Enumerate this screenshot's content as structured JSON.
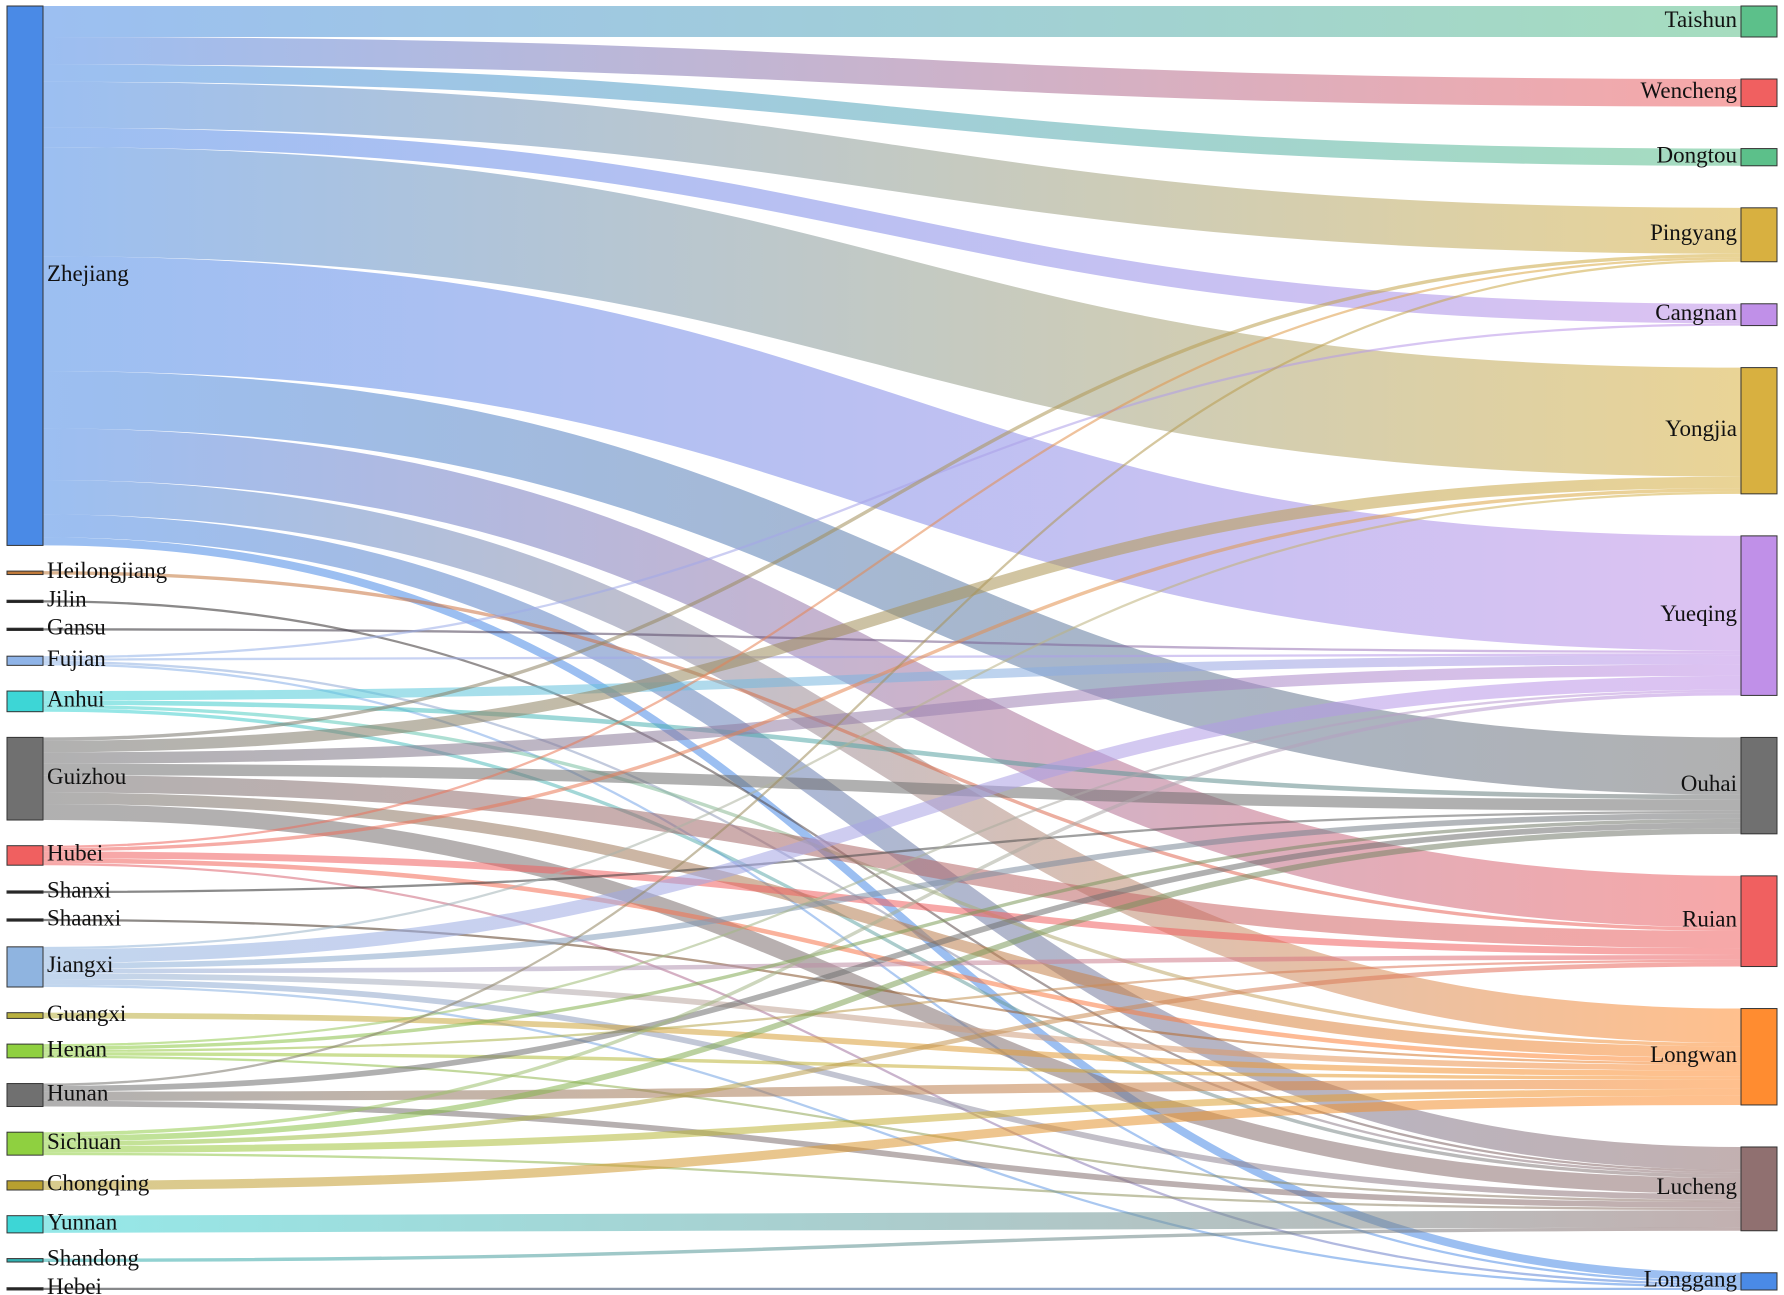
{
  "chart_data": {
    "type": "sankey",
    "nodes": [
      {
        "name": "Zhejiang",
        "color": "#4a8ae6"
      },
      {
        "name": "Heilongjiang",
        "color": "#c07a3a"
      },
      {
        "name": "Jilin",
        "color": "#222222"
      },
      {
        "name": "Gansu",
        "color": "#222222"
      },
      {
        "name": "Fujian",
        "color": "#8fb4e8"
      },
      {
        "name": "Anhui",
        "color": "#3dd6d6"
      },
      {
        "name": "Guizhou",
        "color": "#707070"
      },
      {
        "name": "Hubei",
        "color": "#f06060"
      },
      {
        "name": "Shanxi",
        "color": "#222222"
      },
      {
        "name": "Shaanxi",
        "color": "#222222"
      },
      {
        "name": "Jiangxi",
        "color": "#8fb4e0"
      },
      {
        "name": "Guangxi",
        "color": "#b8b040"
      },
      {
        "name": "Henan",
        "color": "#8fd040"
      },
      {
        "name": "Hunan",
        "color": "#707070"
      },
      {
        "name": "Sichuan",
        "color": "#8fd040"
      },
      {
        "name": "Chongqing",
        "color": "#b8a030"
      },
      {
        "name": "Yunnan",
        "color": "#3dd6d6"
      },
      {
        "name": "Shandong",
        "color": "#30b0b0"
      },
      {
        "name": "Hebei",
        "color": "#222222"
      },
      {
        "name": "Taishun",
        "color": "#5cc08a"
      },
      {
        "name": "Wencheng",
        "color": "#f06060"
      },
      {
        "name": "Dongtou",
        "color": "#5cc08a"
      },
      {
        "name": "Pingyang",
        "color": "#d8b040"
      },
      {
        "name": "Cangnan",
        "color": "#c090e8"
      },
      {
        "name": "Yongjia",
        "color": "#d8b040"
      },
      {
        "name": "Yueqing",
        "color": "#c090e8"
      },
      {
        "name": "Ouhai",
        "color": "#707070"
      },
      {
        "name": "Ruian",
        "color": "#f06060"
      },
      {
        "name": "Longwan",
        "color": "#ff8c30"
      },
      {
        "name": "Lucheng",
        "color": "#907070"
      },
      {
        "name": "Longgang",
        "color": "#4a8ae6"
      }
    ],
    "links": [
      {
        "source": "Zhejiang",
        "target": "Taishun",
        "value": 27
      },
      {
        "source": "Zhejiang",
        "target": "Wencheng",
        "value": 24
      },
      {
        "source": "Zhejiang",
        "target": "Dongtou",
        "value": 15
      },
      {
        "source": "Zhejiang",
        "target": "Pingyang",
        "value": 40
      },
      {
        "source": "Zhejiang",
        "target": "Cangnan",
        "value": 17
      },
      {
        "source": "Zhejiang",
        "target": "Yongjia",
        "value": 95
      },
      {
        "source": "Zhejiang",
        "target": "Yueqing",
        "value": 100
      },
      {
        "source": "Zhejiang",
        "target": "Ouhai",
        "value": 50
      },
      {
        "source": "Zhejiang",
        "target": "Ruian",
        "value": 45
      },
      {
        "source": "Zhejiang",
        "target": "Longwan",
        "value": 30
      },
      {
        "source": "Zhejiang",
        "target": "Lucheng",
        "value": 20
      },
      {
        "source": "Zhejiang",
        "target": "Longgang",
        "value": 7
      },
      {
        "source": "Heilongjiang",
        "target": "Ruian",
        "value": 3
      },
      {
        "source": "Jilin",
        "target": "Lucheng",
        "value": 2
      },
      {
        "source": "Gansu",
        "target": "Yueqing",
        "value": 2
      },
      {
        "source": "Fujian",
        "target": "Cangnan",
        "value": 2
      },
      {
        "source": "Fujian",
        "target": "Yueqing",
        "value": 2
      },
      {
        "source": "Fujian",
        "target": "Lucheng",
        "value": 2
      },
      {
        "source": "Fujian",
        "target": "Longgang",
        "value": 2
      },
      {
        "source": "Anhui",
        "target": "Yueqing",
        "value": 8
      },
      {
        "source": "Anhui",
        "target": "Ouhai",
        "value": 4
      },
      {
        "source": "Anhui",
        "target": "Longwan",
        "value": 3
      },
      {
        "source": "Anhui",
        "target": "Lucheng",
        "value": 3
      },
      {
        "source": "Guizhou",
        "target": "Pingyang",
        "value": 3
      },
      {
        "source": "Guizhou",
        "target": "Yongjia",
        "value": 10
      },
      {
        "source": "Guizhou",
        "target": "Yueqing",
        "value": 10
      },
      {
        "source": "Guizhou",
        "target": "Ouhai",
        "value": 10
      },
      {
        "source": "Guizhou",
        "target": "Ruian",
        "value": 15
      },
      {
        "source": "Guizhou",
        "target": "Longwan",
        "value": 10
      },
      {
        "source": "Guizhou",
        "target": "Lucheng",
        "value": 14
      },
      {
        "source": "Hubei",
        "target": "Pingyang",
        "value": 2
      },
      {
        "source": "Hubei",
        "target": "Yongjia",
        "value": 3
      },
      {
        "source": "Hubei",
        "target": "Ruian",
        "value": 6
      },
      {
        "source": "Hubei",
        "target": "Longwan",
        "value": 4
      },
      {
        "source": "Hubei",
        "target": "Longgang",
        "value": 2
      },
      {
        "source": "Shanxi",
        "target": "Ouhai",
        "value": 2
      },
      {
        "source": "Shaanxi",
        "target": "Longwan",
        "value": 2
      },
      {
        "source": "Jiangxi",
        "target": "Yongjia",
        "value": 2
      },
      {
        "source": "Jiangxi",
        "target": "Yueqing",
        "value": 12
      },
      {
        "source": "Jiangxi",
        "target": "Ouhai",
        "value": 5
      },
      {
        "source": "Jiangxi",
        "target": "Ruian",
        "value": 4
      },
      {
        "source": "Jiangxi",
        "target": "Longwan",
        "value": 5
      },
      {
        "source": "Jiangxi",
        "target": "Lucheng",
        "value": 5
      },
      {
        "source": "Jiangxi",
        "target": "Longgang",
        "value": 2
      },
      {
        "source": "Guangxi",
        "target": "Longwan",
        "value": 5
      },
      {
        "source": "Henan",
        "target": "Yueqing",
        "value": 2
      },
      {
        "source": "Henan",
        "target": "Ouhai",
        "value": 3
      },
      {
        "source": "Henan",
        "target": "Ruian",
        "value": 2
      },
      {
        "source": "Henan",
        "target": "Longwan",
        "value": 3
      },
      {
        "source": "Henan",
        "target": "Lucheng",
        "value": 2
      },
      {
        "source": "Hunan",
        "target": "Pingyang",
        "value": 2
      },
      {
        "source": "Hunan",
        "target": "Ouhai",
        "value": 5
      },
      {
        "source": "Hunan",
        "target": "Longwan",
        "value": 8
      },
      {
        "source": "Hunan",
        "target": "Lucheng",
        "value": 5
      },
      {
        "source": "Sichuan",
        "target": "Yueqing",
        "value": 3
      },
      {
        "source": "Sichuan",
        "target": "Ouhai",
        "value": 5
      },
      {
        "source": "Sichuan",
        "target": "Ruian",
        "value": 4
      },
      {
        "source": "Sichuan",
        "target": "Longwan",
        "value": 6
      },
      {
        "source": "Sichuan",
        "target": "Lucheng",
        "value": 2
      },
      {
        "source": "Chongqing",
        "target": "Longwan",
        "value": 8
      },
      {
        "source": "Yunnan",
        "target": "Lucheng",
        "value": 15
      },
      {
        "source": "Shandong",
        "target": "Lucheng",
        "value": 3
      },
      {
        "source": "Hebei",
        "target": "Longgang",
        "value": 2
      }
    ]
  }
}
